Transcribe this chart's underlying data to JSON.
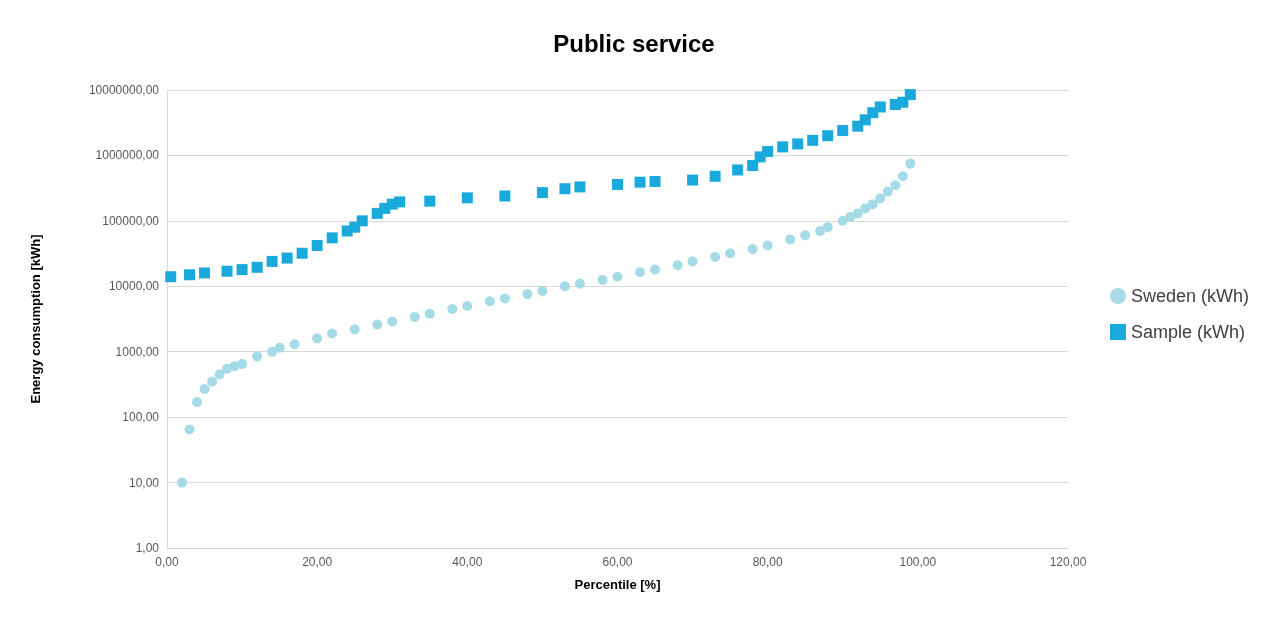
{
  "chart_data": {
    "type": "scatter",
    "title": "Public service",
    "xlabel": "Percentile [%]",
    "ylabel": "Energy consumption [kWh]",
    "log": "y",
    "grid": "y",
    "legend": "right",
    "xlim": [
      0,
      120
    ],
    "xticks": [
      {
        "value": 0,
        "label": "0,00"
      },
      {
        "value": 20,
        "label": "20,00"
      },
      {
        "value": 40,
        "label": "40,00"
      },
      {
        "value": 60,
        "label": "60,00"
      },
      {
        "value": 80,
        "label": "80,00"
      },
      {
        "value": 100,
        "label": "100,00"
      },
      {
        "value": 120,
        "label": "120,00"
      }
    ],
    "ylim": [
      1,
      10000000
    ],
    "yticks": [
      {
        "value": 1,
        "label": "1,00"
      },
      {
        "value": 10,
        "label": "10,00"
      },
      {
        "value": 100,
        "label": "100,00"
      },
      {
        "value": 1000,
        "label": "1000,00"
      },
      {
        "value": 10000,
        "label": "10000,00"
      },
      {
        "value": 100000,
        "label": "100000,00"
      },
      {
        "value": 1000000,
        "label": "1000000,00"
      },
      {
        "value": 10000000,
        "label": "10000000,00"
      }
    ],
    "series": [
      {
        "name": "Sweden (kWh)",
        "color": "#a5dbe6",
        "marker": "circle",
        "x": [
          2,
          3,
          4,
          5,
          6,
          7,
          8,
          9,
          10,
          12,
          14,
          15,
          17,
          20,
          22,
          25,
          28,
          30,
          33,
          35,
          38,
          40,
          43,
          45,
          48,
          50,
          53,
          55,
          58,
          60,
          63,
          65,
          68,
          70,
          73,
          75,
          78,
          80,
          83,
          85,
          87,
          88,
          90,
          91,
          92,
          93,
          94,
          95,
          96,
          97,
          98,
          99
        ],
        "values": [
          10,
          65,
          170,
          270,
          350,
          450,
          550,
          600,
          650,
          850,
          1000,
          1150,
          1300,
          1600,
          1900,
          2200,
          2600,
          2900,
          3400,
          3800,
          4500,
          5000,
          5900,
          6500,
          7600,
          8500,
          10000,
          11000,
          12500,
          14000,
          16500,
          18000,
          21000,
          24000,
          28000,
          32000,
          37000,
          42000,
          52000,
          60000,
          70000,
          80000,
          100000,
          115000,
          130000,
          155000,
          180000,
          220000,
          280000,
          350000,
          480000,
          750000
        ]
      },
      {
        "name": "Sample (kWh)",
        "color": "#1aa9dd",
        "marker": "square",
        "x": [
          0.5,
          3,
          5,
          8,
          10,
          12,
          14,
          16,
          18,
          20,
          22,
          24,
          25,
          26,
          28,
          29,
          30,
          31,
          35,
          40,
          45,
          50,
          53,
          55,
          60,
          63,
          65,
          70,
          73,
          76,
          78,
          79,
          80,
          82,
          84,
          86,
          88,
          90,
          92,
          93,
          94,
          95,
          97,
          98,
          99
        ],
        "values": [
          14000,
          15000,
          16000,
          17000,
          18000,
          19500,
          24000,
          27000,
          32000,
          42000,
          55000,
          70000,
          80000,
          100000,
          130000,
          155000,
          180000,
          195000,
          200000,
          225000,
          240000,
          270000,
          310000,
          330000,
          360000,
          390000,
          400000,
          420000,
          480000,
          600000,
          700000,
          950000,
          1150000,
          1350000,
          1500000,
          1700000,
          2000000,
          2400000,
          2800000,
          3500000,
          4500000,
          5500000,
          6000000,
          6500000,
          8500000
        ]
      }
    ]
  }
}
